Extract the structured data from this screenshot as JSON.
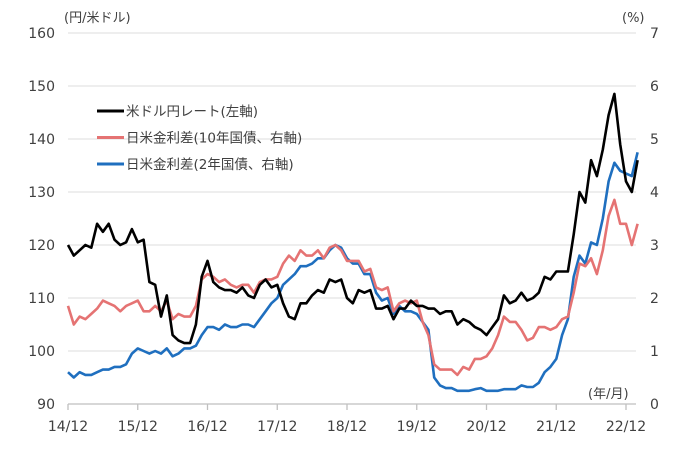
{
  "chart_data": {
    "type": "line",
    "title": "",
    "left_axis_label": "(円/米ドル)",
    "right_axis_label": "(%)",
    "xlabel": "(年/月)",
    "left_ylim": [
      90,
      160
    ],
    "left_ticks": [
      "90",
      "100",
      "110",
      "120",
      "130",
      "140",
      "150",
      "160"
    ],
    "right_ylim": [
      0,
      7
    ],
    "right_ticks": [
      "0",
      "1",
      "2",
      "3",
      "4",
      "5",
      "6",
      "7"
    ],
    "x_ticks": [
      {
        "label": "14/12",
        "date": "2014-12"
      },
      {
        "label": "15/12",
        "date": "2015-12"
      },
      {
        "label": "16/12",
        "date": "2016-12"
      },
      {
        "label": "17/12",
        "date": "2017-12"
      },
      {
        "label": "18/12",
        "date": "2018-12"
      },
      {
        "label": "19/12",
        "date": "2019-12"
      },
      {
        "label": "20/12",
        "date": "2020-12"
      },
      {
        "label": "21/12",
        "date": "2021-12"
      },
      {
        "label": "22/12",
        "date": "2022-12"
      }
    ],
    "grid": true,
    "legend_placement": "top-left",
    "x_start": "2014-12",
    "series": [
      {
        "name": "米ドル円レート(左軸)",
        "axis": "left",
        "color": "#000000",
        "values": [
          120,
          118,
          119,
          120,
          119.5,
          124,
          122.5,
          124,
          121,
          120,
          120.5,
          123,
          120.5,
          121,
          113,
          112.5,
          106.5,
          110.5,
          103,
          102,
          101.5,
          101.5,
          105,
          114,
          117,
          113,
          112,
          111.5,
          111.5,
          111,
          112,
          110.5,
          110,
          112.5,
          113.5,
          112,
          112.5,
          109,
          106.5,
          106,
          109,
          109,
          110.5,
          111.5,
          111,
          113.5,
          113,
          113.5,
          110,
          109,
          111.5,
          111,
          111.5,
          108,
          108,
          108.5,
          106,
          108,
          108,
          109.5,
          108.5,
          108.5,
          108,
          108,
          107,
          107.5,
          107.5,
          105,
          106,
          105.5,
          104.5,
          104,
          103,
          104.5,
          106,
          110.5,
          109,
          109.5,
          111,
          109.5,
          110,
          111,
          114,
          113.5,
          115,
          115,
          115,
          122,
          130,
          128,
          136,
          133,
          138,
          144.5,
          148.5,
          139,
          132,
          130,
          136
        ]
      },
      {
        "name": "日米金利差(10年国債、右軸)",
        "axis": "right",
        "color": "#E57373",
        "values": [
          1.85,
          1.5,
          1.65,
          1.6,
          1.7,
          1.8,
          1.95,
          1.9,
          1.85,
          1.75,
          1.85,
          1.9,
          1.95,
          1.75,
          1.75,
          1.85,
          1.75,
          1.95,
          1.6,
          1.7,
          1.65,
          1.65,
          1.85,
          2.35,
          2.45,
          2.4,
          2.3,
          2.35,
          2.25,
          2.2,
          2.25,
          2.25,
          2.1,
          2.3,
          2.35,
          2.35,
          2.4,
          2.65,
          2.8,
          2.7,
          2.9,
          2.8,
          2.8,
          2.9,
          2.75,
          2.95,
          3.0,
          2.9,
          2.7,
          2.7,
          2.7,
          2.5,
          2.55,
          2.2,
          2.15,
          2.2,
          1.75,
          1.9,
          1.95,
          1.9,
          1.95,
          1.55,
          1.3,
          0.75,
          0.65,
          0.65,
          0.65,
          0.55,
          0.7,
          0.65,
          0.85,
          0.85,
          0.9,
          1.05,
          1.3,
          1.65,
          1.55,
          1.55,
          1.4,
          1.2,
          1.25,
          1.45,
          1.45,
          1.4,
          1.45,
          1.6,
          1.65,
          2.1,
          2.65,
          2.6,
          2.75,
          2.45,
          2.9,
          3.55,
          3.85,
          3.4,
          3.4,
          3.0,
          3.4
        ]
      },
      {
        "name": "日米金利差(2年国債、右軸)",
        "axis": "right",
        "color": "#1F6FBF",
        "values": [
          0.6,
          0.5,
          0.6,
          0.55,
          0.55,
          0.6,
          0.65,
          0.65,
          0.7,
          0.7,
          0.75,
          0.95,
          1.05,
          1.0,
          0.95,
          1.0,
          0.95,
          1.05,
          0.9,
          0.95,
          1.05,
          1.05,
          1.1,
          1.3,
          1.45,
          1.45,
          1.4,
          1.5,
          1.45,
          1.45,
          1.5,
          1.5,
          1.45,
          1.6,
          1.75,
          1.9,
          2.0,
          2.25,
          2.35,
          2.45,
          2.6,
          2.6,
          2.65,
          2.75,
          2.75,
          2.9,
          3.0,
          2.95,
          2.75,
          2.65,
          2.65,
          2.45,
          2.45,
          2.1,
          1.95,
          2.0,
          1.7,
          1.85,
          1.75,
          1.75,
          1.7,
          1.55,
          1.4,
          0.5,
          0.35,
          0.3,
          0.3,
          0.25,
          0.25,
          0.25,
          0.28,
          0.3,
          0.25,
          0.25,
          0.25,
          0.28,
          0.28,
          0.28,
          0.35,
          0.32,
          0.32,
          0.4,
          0.6,
          0.7,
          0.85,
          1.3,
          1.6,
          2.4,
          2.8,
          2.65,
          3.05,
          3.0,
          3.5,
          4.2,
          4.55,
          4.4,
          4.35,
          4.3,
          4.75
        ]
      }
    ]
  }
}
